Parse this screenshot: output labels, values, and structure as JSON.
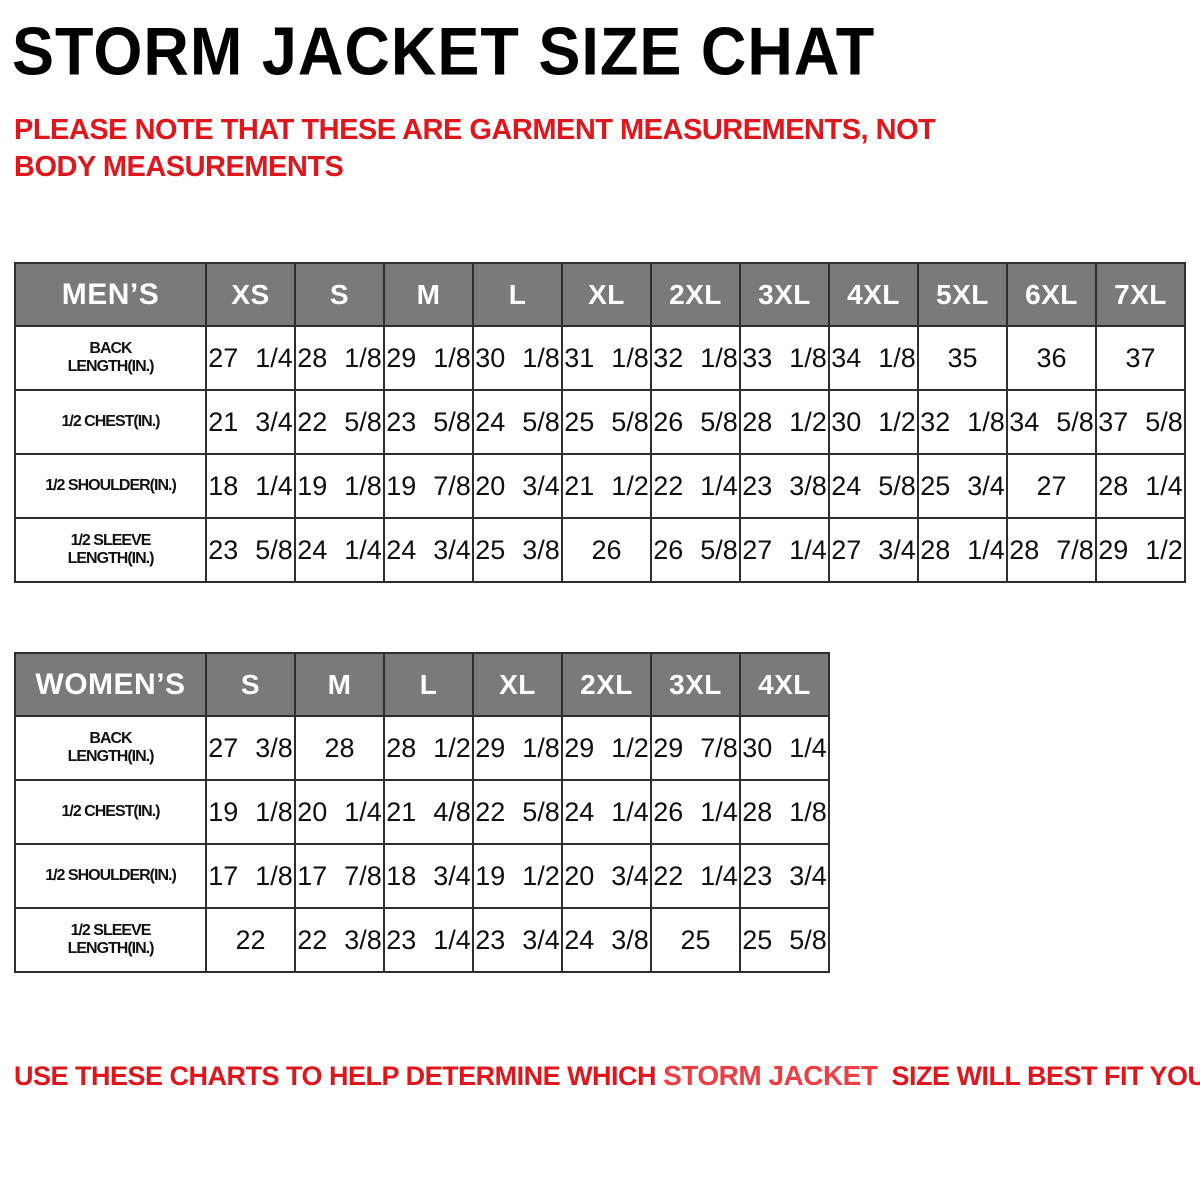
{
  "page": {
    "title": "STORM JACKET SIZE CHAT",
    "note_top": "PLEASE NOTE THAT THESE ARE GARMENT MEASUREMENTS, NOT BODY MEASUREMENTS",
    "note_bottom_prefix": "USE THESE CHARTS TO HELP DETERMINE WHICH ",
    "note_bottom_highlight": "STORM JACKET",
    "note_bottom_suffix": "  SIZE WILL BEST FIT YOU."
  },
  "colors": {
    "header_bg": "#7a7a7a",
    "header_text": "#ffffff",
    "border": "#2e2e2e",
    "note_red": "#e0161d",
    "highlight_red": "#ef3d43",
    "title_black": "#000000"
  },
  "layout_hints": {
    "label_col_width": 191,
    "size_col_width": 89
  },
  "tables": [
    {
      "id": "mens",
      "corner_label": "MEN’S",
      "sizes": [
        "XS",
        "S",
        "M",
        "L",
        "XL",
        "2XL",
        "3XL",
        "4XL",
        "5XL",
        "6XL",
        "7XL"
      ],
      "rows": [
        {
          "label": "BACK\nLENGTH(IN.)",
          "values": [
            "27 1/4",
            "28 1/8",
            "29 1/8",
            "30 1/8",
            "31 1/8",
            "32 1/8",
            "33 1/8",
            "34 1/8",
            "35",
            "36",
            "37"
          ]
        },
        {
          "label": "1/2 CHEST(IN.)",
          "values": [
            "21 3/4",
            "22 5/8",
            "23 5/8",
            "24 5/8",
            "25 5/8",
            "26 5/8",
            "28 1/2",
            "30 1/2",
            "32 1/8",
            "34 5/8",
            "37 5/8"
          ]
        },
        {
          "label": "1/2 SHOULDER(IN.)",
          "values": [
            "18 1/4",
            "19 1/8",
            "19 7/8",
            "20 3/4",
            "21 1/2",
            "22 1/4",
            "23 3/8",
            "24 5/8",
            "25 3/4",
            "27",
            "28 1/4"
          ]
        },
        {
          "label": "1/2 SLEEVE\nLENGTH(IN.)",
          "values": [
            "23 5/8",
            "24 1/4",
            "24 3/4",
            "25 3/8",
            "26",
            "26 5/8",
            "27 1/4",
            "27 3/4",
            "28 1/4",
            "28 7/8",
            "29 1/2"
          ]
        }
      ]
    },
    {
      "id": "womens",
      "corner_label": "WOMEN’S",
      "sizes": [
        "S",
        "M",
        "L",
        "XL",
        "2XL",
        "3XL",
        "4XL"
      ],
      "rows": [
        {
          "label": "BACK\nLENGTH(IN.)",
          "values": [
            "27 3/8",
            "28",
            "28 1/2",
            "29 1/8",
            "29 1/2",
            "29 7/8",
            "30 1/4"
          ]
        },
        {
          "label": "1/2 CHEST(IN.)",
          "values": [
            "19 1/8",
            "20 1/4",
            "21 4/8",
            "22 5/8",
            "24 1/4",
            "26 1/4",
            "28 1/8"
          ]
        },
        {
          "label": "1/2 SHOULDER(IN.)",
          "values": [
            "17 1/8",
            "17 7/8",
            "18 3/4",
            "19 1/2",
            "20 3/4",
            "22 1/4",
            "23 3/4"
          ]
        },
        {
          "label": "1/2 SLEEVE\nLENGTH(IN.)",
          "values": [
            "22",
            "22 3/8",
            "23 1/4",
            "23 3/4",
            "24 3/8",
            "25",
            "25 5/8"
          ]
        }
      ]
    }
  ]
}
